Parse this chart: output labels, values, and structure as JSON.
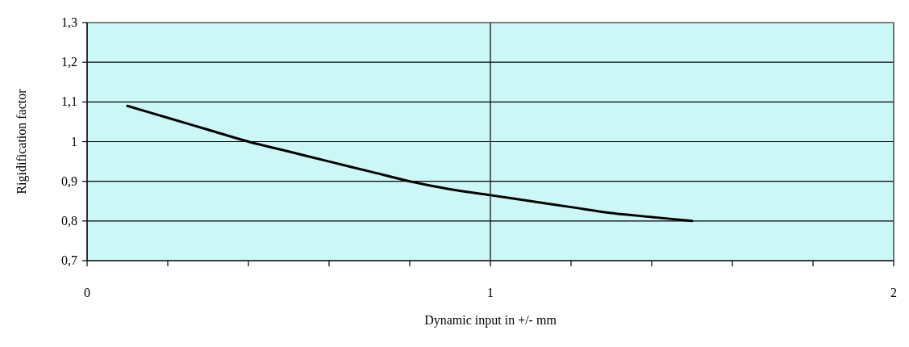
{
  "chart_data": {
    "type": "line",
    "xlabel": "Dynamic input in +/- mm",
    "ylabel": "Rigidification factor",
    "x": [
      0.1,
      0.2,
      0.3,
      0.4,
      0.5,
      0.6,
      0.7,
      0.8,
      0.9,
      1.0,
      1.1,
      1.2,
      1.3,
      1.4,
      1.5
    ],
    "series": [
      {
        "color": "#000000",
        "values": [
          1.09,
          1.06,
          1.03,
          1.0,
          0.975,
          0.95,
          0.925,
          0.9,
          0.88,
          0.865,
          0.85,
          0.835,
          0.82,
          0.81,
          0.8
        ]
      }
    ],
    "xlim": [
      0,
      2
    ],
    "xticks": [
      0,
      {
        "value": 0.2,
        "label": null
      },
      {
        "value": 0.4,
        "label": null
      },
      {
        "value": 0.6,
        "label": null
      },
      {
        "value": 0.8,
        "label": null
      },
      1,
      {
        "value": 1.2,
        "label": null
      },
      {
        "value": 1.4,
        "label": null
      },
      {
        "value": 1.6,
        "label": null
      },
      {
        "value": 1.8,
        "label": null
      },
      2
    ],
    "ylim": [
      0.7,
      1.3
    ],
    "yticks": [
      {
        "value": 0.7,
        "label": "0,7"
      },
      {
        "value": 0.8,
        "label": "0,8"
      },
      {
        "value": 0.9,
        "label": "0,9"
      },
      1,
      {
        "value": 1.1,
        "label": "1,1"
      },
      {
        "value": 1.2,
        "label": "1,2"
      },
      {
        "value": 1.3,
        "label": "1,3"
      }
    ],
    "grid": true,
    "marker": "none",
    "line_style": "solid"
  }
}
